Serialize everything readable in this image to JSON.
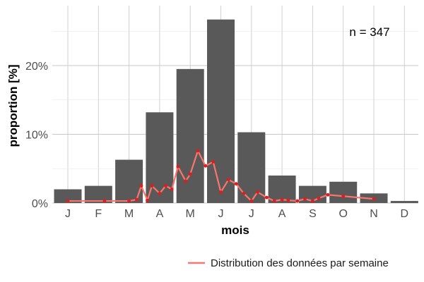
{
  "chart_data": {
    "type": "bar",
    "xlabel": "mois",
    "ylabel": "proportion [%]",
    "categories": [
      "J",
      "F",
      "M",
      "A",
      "M",
      "J",
      "J",
      "A",
      "S",
      "O",
      "N",
      "D"
    ],
    "values": [
      2.0,
      2.5,
      6.3,
      13.2,
      19.5,
      26.7,
      10.3,
      4.0,
      2.5,
      3.1,
      1.4,
      0.3
    ],
    "ylim": [
      0,
      27.5
    ],
    "yticks": [
      0,
      10,
      20
    ],
    "ytick_labels": [
      "0%",
      "10%",
      "20%"
    ],
    "grid": true,
    "annotation": "n = 347",
    "bar_color": "#595959",
    "line_series": {
      "name": "Distribution des données par semaine",
      "color": "#f8766d",
      "point_color": "#e41a1c",
      "x": [
        0.0,
        1.2,
        2.0,
        2.25,
        2.4,
        2.6,
        2.75,
        3.0,
        3.2,
        3.4,
        3.6,
        3.85,
        4.0,
        4.25,
        4.5,
        4.75,
        5.0,
        5.25,
        5.5,
        5.75,
        6.0,
        6.2,
        6.5,
        6.75,
        7.0,
        7.2,
        7.5,
        7.75,
        8.0,
        8.2,
        8.5,
        9.0,
        10.0
      ],
      "y": [
        0.3,
        0.3,
        0.3,
        0.5,
        2.5,
        0.4,
        2.5,
        1.4,
        2.5,
        2.0,
        5.3,
        3.2,
        4.2,
        7.6,
        5.4,
        6.0,
        1.6,
        3.4,
        2.8,
        1.4,
        0.3,
        1.6,
        0.8,
        0.3,
        0.5,
        0.4,
        0.3,
        0.6,
        0.3,
        0.7,
        1.2,
        1.0,
        0.6
      ]
    },
    "legend_position": "bottom-right"
  }
}
